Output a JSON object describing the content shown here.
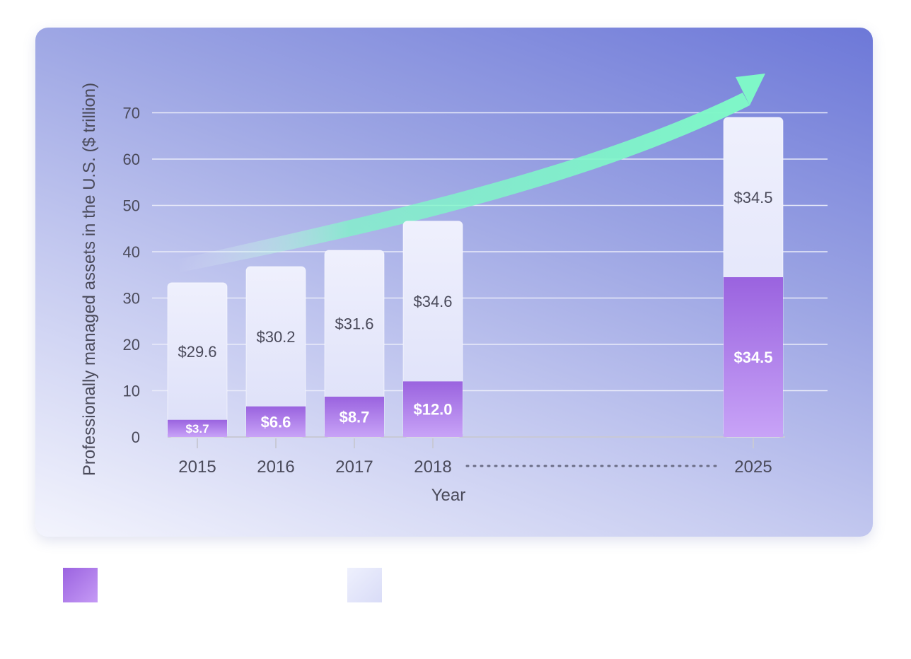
{
  "chart_data": {
    "type": "bar",
    "stacked": true,
    "title": "",
    "xlabel": "Year",
    "ylabel": "Professionally managed assets in the U.S. ($ trillion)",
    "ylim": [
      0,
      70
    ],
    "yticks": [
      0,
      10,
      20,
      30,
      40,
      50,
      60,
      70
    ],
    "grid": true,
    "categories": [
      "2015",
      "2016",
      "2017",
      "2018",
      "2025"
    ],
    "axis_break": "dotted gap between 2018 and 2025",
    "trend_arrow": true,
    "series": [
      {
        "values": [
          3.7,
          6.6,
          8.7,
          12.0,
          34.5
        ],
        "labels": [
          "$3.7",
          "$6.6",
          "$8.7",
          "$12.0",
          "$34.5"
        ],
        "color_top": "#9a63df",
        "color_bottom": "#c8a3f7"
      },
      {
        "values": [
          29.6,
          30.2,
          31.6,
          34.6,
          34.5
        ],
        "labels": [
          "$29.6",
          "$30.2",
          "$31.6",
          "$34.6",
          "$34.5"
        ],
        "color_top": "#eff0fd",
        "color_bottom": "#dcdff8"
      }
    ],
    "colors": {
      "arrow": "#7ff7c8",
      "gridline": "#e9ebf9",
      "axis_text": "#4a4a5a"
    }
  },
  "legend": [
    {
      "swatch": "purple-gradient",
      "label": ""
    },
    {
      "swatch": "lavender",
      "label": ""
    }
  ]
}
